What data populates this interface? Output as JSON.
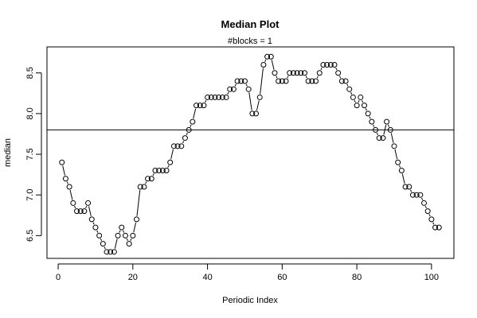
{
  "chart_data": {
    "type": "line",
    "title": "Median Plot",
    "subtitle": "#blocks =  1",
    "xlabel": "Periodic Index",
    "ylabel": "median",
    "xlim": [
      -3,
      106
    ],
    "ylim": [
      6.22,
      8.82
    ],
    "x_ticks": [
      0,
      20,
      40,
      60,
      80,
      100
    ],
    "y_ticks": [
      6.5,
      7.0,
      7.5,
      8.0,
      8.5
    ],
    "x_tick_labels": [
      "0",
      "20",
      "40",
      "60",
      "80",
      "100"
    ],
    "y_tick_labels": [
      "6.5",
      "7.0",
      "7.5",
      "8.0",
      "8.5"
    ],
    "reference_line": 7.8,
    "grid": false,
    "marker": "open-circle",
    "x": [
      1,
      2,
      3,
      4,
      5,
      6,
      7,
      8,
      9,
      10,
      11,
      12,
      13,
      14,
      15,
      16,
      17,
      18,
      19,
      20,
      21,
      22,
      23,
      24,
      25,
      26,
      27,
      28,
      29,
      30,
      31,
      32,
      33,
      34,
      35,
      36,
      37,
      38,
      39,
      40,
      41,
      42,
      43,
      44,
      45,
      46,
      47,
      48,
      49,
      50,
      51,
      52,
      53,
      54,
      55,
      56,
      57,
      58,
      59,
      60,
      61,
      62,
      63,
      64,
      65,
      66,
      67,
      68,
      69,
      70,
      71,
      72,
      73,
      74,
      75,
      76,
      77,
      78,
      79,
      80,
      81,
      82,
      83,
      84,
      85,
      86,
      87,
      88,
      89,
      90,
      91,
      92,
      93,
      94,
      95,
      96,
      97,
      98,
      99,
      100,
      101,
      102
    ],
    "values": [
      7.4,
      7.2,
      7.1,
      6.9,
      6.8,
      6.8,
      6.8,
      6.9,
      6.7,
      6.6,
      6.5,
      6.4,
      6.3,
      6.3,
      6.3,
      6.5,
      6.6,
      6.5,
      6.4,
      6.5,
      6.7,
      7.1,
      7.1,
      7.2,
      7.2,
      7.3,
      7.3,
      7.3,
      7.3,
      7.4,
      7.6,
      7.6,
      7.6,
      7.7,
      7.8,
      7.9,
      8.1,
      8.1,
      8.1,
      8.2,
      8.2,
      8.2,
      8.2,
      8.2,
      8.2,
      8.3,
      8.3,
      8.4,
      8.4,
      8.4,
      8.3,
      8.0,
      8.0,
      8.2,
      8.6,
      8.7,
      8.7,
      8.5,
      8.4,
      8.4,
      8.4,
      8.5,
      8.5,
      8.5,
      8.5,
      8.5,
      8.4,
      8.4,
      8.4,
      8.5,
      8.6,
      8.6,
      8.6,
      8.6,
      8.5,
      8.4,
      8.4,
      8.3,
      8.2,
      8.1,
      8.2,
      8.1,
      8.0,
      7.9,
      7.8,
      7.7,
      7.7,
      7.9,
      7.8,
      7.6,
      7.4,
      7.3,
      7.1,
      7.1,
      7.0,
      7.0,
      7.0,
      6.9,
      6.8,
      6.7,
      6.6,
      6.6
    ]
  }
}
